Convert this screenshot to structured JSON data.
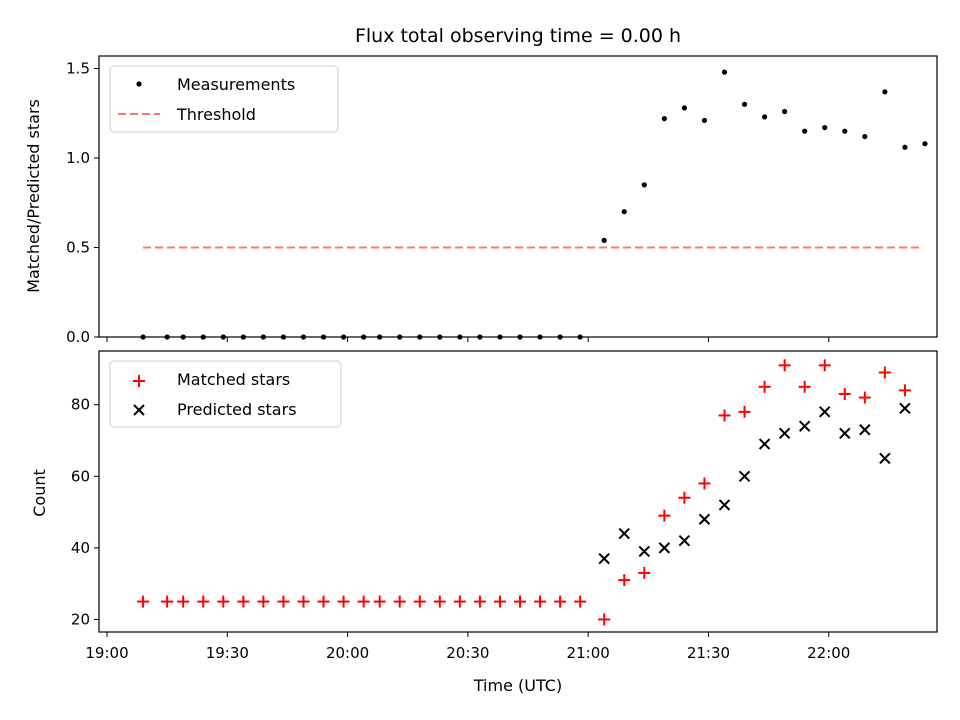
{
  "chart_data": {
    "type": "scatter",
    "title": "Flux total observing time = 0.00 h",
    "xlabel": "Time (UTC)",
    "x_unit": "minutes",
    "xlim": [
      1138,
      1347
    ],
    "xticks": [
      {
        "v": 1140,
        "label": "19:00"
      },
      {
        "v": 1170,
        "label": "19:30"
      },
      {
        "v": 1200,
        "label": "20:00"
      },
      {
        "v": 1230,
        "label": "20:30"
      },
      {
        "v": 1260,
        "label": "21:00"
      },
      {
        "v": 1290,
        "label": "21:30"
      },
      {
        "v": 1320,
        "label": "22:00"
      }
    ],
    "panels": [
      {
        "id": "ratio",
        "ylabel": "Matched/Predicted stars",
        "ylim": [
          0,
          1.57
        ],
        "yticks": [
          0.0,
          0.5,
          1.0,
          1.5
        ],
        "ytick_labels": [
          "0.0",
          "0.5",
          "1.0",
          "1.5"
        ],
        "legend": "upper-left",
        "series": [
          {
            "name": "Measurements",
            "marker": "dot",
            "color": "#000000",
            "x": [
              1149,
              1155,
              1159,
              1164,
              1169,
              1174,
              1179,
              1184,
              1189,
              1194,
              1199,
              1204,
              1208,
              1213,
              1218,
              1223,
              1228,
              1233,
              1238,
              1243,
              1248,
              1253,
              1258,
              1264,
              1269,
              1274,
              1279,
              1284,
              1289,
              1294,
              1299,
              1304,
              1309,
              1314,
              1319,
              1324,
              1329,
              1334,
              1339,
              1344
            ],
            "y": [
              0,
              0,
              0,
              0,
              0,
              0,
              0,
              0,
              0,
              0,
              0,
              0,
              0,
              0,
              0,
              0,
              0,
              0,
              0,
              0,
              0,
              0,
              0,
              0.54,
              0.7,
              0.85,
              1.22,
              1.28,
              1.21,
              1.48,
              1.3,
              1.23,
              1.26,
              1.15,
              1.17,
              1.15,
              1.12,
              1.37,
              1.06,
              1.08
            ]
          },
          {
            "name": "Threshold",
            "marker": "dashed-line",
            "color": "#ff7575",
            "x": [
              1149,
              1343
            ],
            "y": [
              0.5,
              0.5
            ]
          }
        ]
      },
      {
        "id": "counts",
        "ylabel": "Count",
        "ylim": [
          16.5,
          95
        ],
        "yticks": [
          20,
          40,
          60,
          80
        ],
        "ytick_labels": [
          "20",
          "40",
          "60",
          "80"
        ],
        "legend": "upper-left",
        "series": [
          {
            "name": "Matched stars",
            "marker": "plus",
            "color": "#ff0000",
            "x": [
              1149,
              1155,
              1159,
              1164,
              1169,
              1174,
              1179,
              1184,
              1189,
              1194,
              1199,
              1204,
              1208,
              1213,
              1218,
              1223,
              1228,
              1233,
              1238,
              1243,
              1248,
              1253,
              1258,
              1264,
              1269,
              1274,
              1279,
              1284,
              1289,
              1294,
              1299,
              1304,
              1309,
              1314,
              1319,
              1324,
              1329,
              1334,
              1339
            ],
            "y": [
              25,
              25,
              25,
              25,
              25,
              25,
              25,
              25,
              25,
              25,
              25,
              25,
              25,
              25,
              25,
              25,
              25,
              25,
              25,
              25,
              25,
              25,
              25,
              20,
              31,
              33,
              49,
              54,
              58,
              77,
              78,
              85,
              91,
              85,
              91,
              83,
              82,
              89,
              84
            ]
          },
          {
            "name": "Predicted stars",
            "marker": "x",
            "color": "#000000",
            "x": [
              1264,
              1269,
              1274,
              1279,
              1284,
              1289,
              1294,
              1299,
              1304,
              1309,
              1314,
              1319,
              1324,
              1329,
              1334,
              1339
            ],
            "y": [
              37,
              44,
              39,
              40,
              42,
              48,
              52,
              60,
              69,
              72,
              74,
              78,
              72,
              73,
              65,
              79
            ]
          }
        ]
      }
    ]
  }
}
